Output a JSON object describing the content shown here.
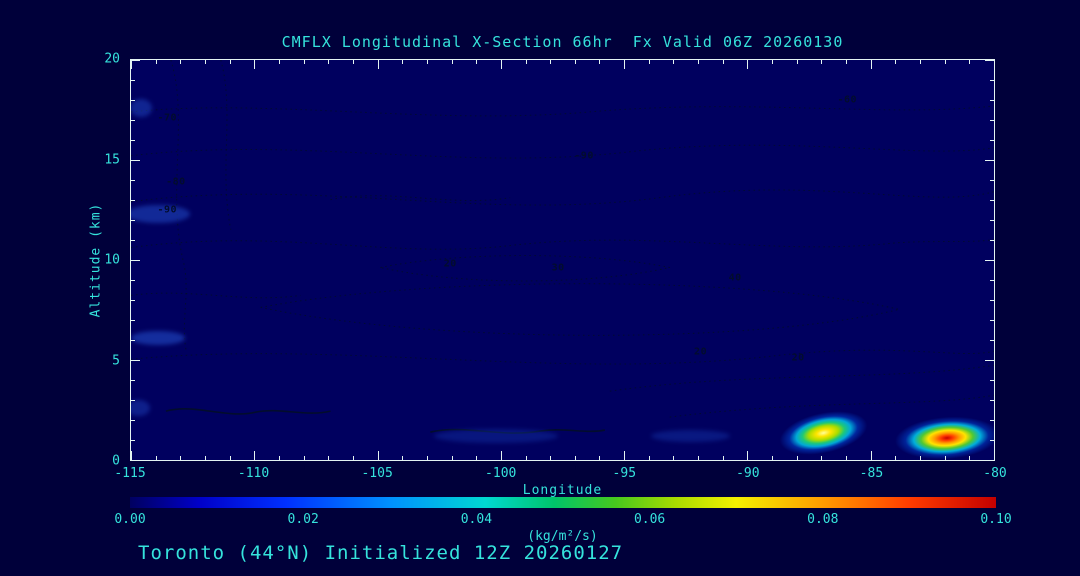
{
  "window": {
    "background": "#00003A"
  },
  "footer": "Toronto (44°N) Initialized 12Z 20260127",
  "colors": {
    "text": "#35E3DC",
    "axis": "#E4F4F2",
    "plot_background": "#00005F",
    "contour": "#020C2C"
  },
  "chart_data": {
    "type": "heatmap",
    "title": "CMFLX Longitudinal X-Section 66hr  Fx Valid 06Z 20260130",
    "xlabel": "Longitude",
    "ylabel": "Altitude (km)",
    "xlim": [
      -115,
      -80
    ],
    "ylim": [
      0,
      20
    ],
    "x_ticks": [
      -115,
      -110,
      -105,
      -100,
      -95,
      -90,
      -85,
      -80
    ],
    "y_ticks": [
      0,
      5,
      10,
      15,
      20
    ],
    "x_minor_step": 1,
    "y_minor_step": 1,
    "grid": false,
    "colorbar": {
      "label": "(kg/m²/s)",
      "min": 0.0,
      "max": 0.1,
      "ticks": [
        "0.00",
        "0.02",
        "0.04",
        "0.06",
        "0.08",
        "0.10"
      ],
      "gradient": [
        "#000060 0%",
        "#0000C8 8%",
        "#0030FF 18%",
        "#0090FF 30%",
        "#00D8D2 41%",
        "#00C46A 49%",
        "#46C81E 56%",
        "#A8DC00 63%",
        "#F4F000 70%",
        "#FF9C00 80%",
        "#FF3C00 90%",
        "#C40000 100%"
      ]
    },
    "hotspots": [
      {
        "lon": -86.9,
        "alt_km": 1.35,
        "peak_value": 0.08,
        "width_deg": 3.6,
        "height_km": 2.0,
        "tilt_deg": -12,
        "gradient": [
          "#FFFF9C 0%",
          "#FFE400 16%",
          "#A8DC00 34%",
          "#1EC878 48%",
          "#00A8D8 62%",
          "rgba(0,70,210,0.55) 78%",
          "rgba(0,0,95,0) 100%"
        ]
      },
      {
        "lon": -81.9,
        "alt_km": 1.1,
        "peak_value": 0.1,
        "width_deg": 4.2,
        "height_km": 2.1,
        "tilt_deg": -4,
        "gradient": [
          "#C80000 0%",
          "#FF3C00 12%",
          "#FF9C00 24%",
          "#FFE400 36%",
          "#50C832 50%",
          "#00AEDC 64%",
          "rgba(0,70,210,0.5) 80%",
          "rgba(0,0,95,0) 100%"
        ]
      }
    ],
    "faint_patches": [
      {
        "lon": -113.9,
        "alt_km": 12.3,
        "width_deg": 2.6,
        "height_km": 0.9,
        "color": "rgba(40,90,220,0.45)"
      },
      {
        "lon": -113.9,
        "alt_km": 6.1,
        "width_deg": 2.2,
        "height_km": 0.7,
        "color": "rgba(40,90,220,0.5)"
      },
      {
        "lon": -114.6,
        "alt_km": 17.6,
        "width_deg": 0.9,
        "height_km": 0.9,
        "color": "rgba(40,90,220,0.4)"
      },
      {
        "lon": -114.7,
        "alt_km": 2.6,
        "width_deg": 0.9,
        "height_km": 0.8,
        "color": "rgba(40,90,220,0.35)"
      },
      {
        "lon": -100.2,
        "alt_km": 1.2,
        "width_deg": 5.0,
        "height_km": 0.7,
        "color": "rgba(30,80,210,0.28)"
      },
      {
        "lon": -92.3,
        "alt_km": 1.2,
        "width_deg": 3.2,
        "height_km": 0.6,
        "color": "rgba(30,80,210,0.3)"
      }
    ],
    "contour_labels": [
      {
        "value": "-70",
        "x_pct": 4.2,
        "y_pct": 14.5
      },
      {
        "value": "-80",
        "x_pct": 5.2,
        "y_pct": 30.5
      },
      {
        "value": "-90",
        "x_pct": 4.2,
        "y_pct": 37.5
      },
      {
        "value": "-90",
        "x_pct": 52.5,
        "y_pct": 24.0
      },
      {
        "value": "-60",
        "x_pct": 83.0,
        "y_pct": 10.0
      },
      {
        "value": "20",
        "x_pct": 37.0,
        "y_pct": 51.0
      },
      {
        "value": "30",
        "x_pct": 49.5,
        "y_pct": 52.0
      },
      {
        "value": "40",
        "x_pct": 70.0,
        "y_pct": 54.5
      },
      {
        "value": "20",
        "x_pct": 66.0,
        "y_pct": 73.0
      },
      {
        "value": "20",
        "x_pct": 77.3,
        "y_pct": 74.5
      }
    ]
  }
}
